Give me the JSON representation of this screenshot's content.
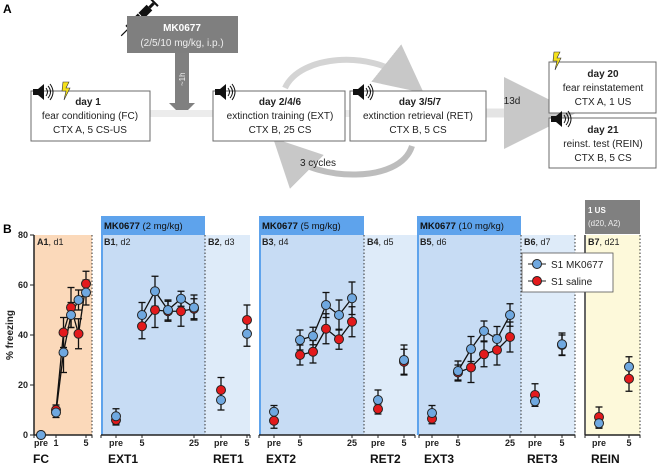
{
  "panel_labels": {
    "a": "A",
    "b": "B"
  },
  "diagram": {
    "drug_box": {
      "title": "MK0677",
      "dose": "(2/5/10 mg/kg, i.p.)"
    },
    "delay_label": "~1h",
    "cycles_label": "3 cycles",
    "gap_label": "13d",
    "boxes": [
      {
        "day": "day 1",
        "phase": "fear conditioning (FC)",
        "detail": "CTX A, 5 CS-US"
      },
      {
        "day": "day 2/4/6",
        "phase": "extinction training (EXT)",
        "detail": "CTX B, 25 CS"
      },
      {
        "day": "day 3/5/7",
        "phase": "extinction retrieval (RET)",
        "detail": "CTX B, 5 CS"
      },
      {
        "day": "day 20",
        "phase": "fear reinstatement",
        "detail": "CTX A, 1 US"
      },
      {
        "day": "day 21",
        "phase": "reinst. test (REIN)",
        "detail": "CTX B, 5 CS"
      }
    ],
    "icons": [
      "syringe-icon",
      "speaker-icon",
      "lightning-icon"
    ]
  },
  "chart_data": {
    "type": "line",
    "ylabel": "% freezing",
    "ylim": [
      0,
      80
    ],
    "yticks": [
      "0",
      "20",
      "40",
      "60",
      "80"
    ],
    "legend": {
      "placement": "top-right",
      "entries": [
        "S1 MK0677",
        "S1 saline"
      ]
    },
    "colors": {
      "mk0677": "#6fa8e0",
      "saline": "#e31a1c",
      "fc_bg": "#fbd9ba",
      "ext_bg": "#c7dcf4",
      "ret_bg": "#deebf9",
      "rein_bg": "#fdf9da",
      "header_blue": "#5ea3ec",
      "header_gray": "#808080"
    },
    "headers": [
      {
        "bold": "MK0677",
        "rest": " (2 mg/kg)"
      },
      {
        "bold": "MK0677",
        "rest": " (5 mg/kg)"
      },
      {
        "bold": "MK0677",
        "rest": " (10 mg/kg)"
      },
      {
        "bold": "1 US",
        "rest": "(d20, A2)"
      }
    ],
    "panels": [
      {
        "id": "A1",
        "day": ", d1",
        "group": "FC",
        "x": [
          "pre",
          1,
          2,
          3,
          4,
          5
        ],
        "ticks": [
          "pre",
          "1",
          "5"
        ],
        "mk0677": {
          "values": [
            0,
            9,
            33,
            48,
            54,
            57
          ],
          "err": [
            0,
            2,
            8,
            5,
            4,
            5
          ]
        },
        "saline": {
          "values": [
            0,
            10,
            41,
            51,
            40.5,
            60.5
          ],
          "err": [
            0,
            2,
            6,
            8,
            6,
            5
          ]
        }
      },
      {
        "id": "B1",
        "day": ", d2",
        "group": "EXT1",
        "x": [
          "pre",
          5,
          10,
          15,
          20,
          25
        ],
        "ticks": [
          "pre",
          "5",
          "25"
        ],
        "mk0677": {
          "values": [
            7.5,
            48,
            57.5,
            50,
            54.5,
            51
          ],
          "err": [
            3,
            5,
            6,
            4,
            3,
            5
          ]
        },
        "saline": {
          "values": [
            6,
            43.5,
            50,
            49.5,
            49.5,
            50.5
          ],
          "err": [
            2,
            5,
            7,
            4,
            6,
            4
          ]
        }
      },
      {
        "id": "B2",
        "day": ", d3",
        "group": "RET1",
        "x": [
          "pre",
          5
        ],
        "ticks": [
          "pre",
          "5"
        ],
        "mk0677": {
          "values": [
            14,
            40.5
          ],
          "err": [
            4,
            5
          ]
        },
        "saline": {
          "values": [
            18,
            46
          ],
          "err": [
            5,
            6
          ]
        }
      },
      {
        "id": "B3",
        "day": ", d4",
        "group": "EXT2",
        "x": [
          "pre",
          5,
          10,
          15,
          20,
          25
        ],
        "ticks": [
          "pre",
          "5",
          "25"
        ],
        "mk0677": {
          "values": [
            9.3,
            38,
            39.6,
            52,
            48,
            54.7
          ],
          "err": [
            2.5,
            4,
            3.5,
            5,
            6,
            6.5
          ]
        },
        "saline": {
          "values": [
            5.7,
            32,
            33.3,
            42.5,
            38.3,
            45.3
          ],
          "err": [
            3,
            4,
            4.5,
            6,
            4,
            6
          ]
        }
      },
      {
        "id": "B4",
        "day": ", d5",
        "group": "RET2",
        "x": [
          "pre",
          5
        ],
        "ticks": [
          "pre",
          "5"
        ],
        "mk0677": {
          "values": [
            14,
            30
          ],
          "err": [
            4,
            6
          ]
        },
        "saline": {
          "values": [
            10.4,
            29.3
          ],
          "err": [
            2,
            5
          ]
        }
      },
      {
        "id": "B5",
        "day": ", d6",
        "group": "EXT3",
        "x": [
          "pre",
          5,
          10,
          15,
          20,
          25
        ],
        "ticks": [
          "pre",
          "5",
          "25"
        ],
        "mk0677": {
          "values": [
            8.8,
            25.6,
            34.4,
            41.6,
            38.4,
            48
          ],
          "err": [
            3,
            4,
            5,
            4,
            5,
            4.5
          ]
        },
        "saline": {
          "values": [
            6.5,
            25,
            27,
            32.3,
            34,
            39.2
          ],
          "err": [
            2,
            3,
            6,
            5,
            6,
            6
          ]
        }
      },
      {
        "id": "B6",
        "day": ", d7",
        "group": "RET3",
        "x": [
          "pre",
          5
        ],
        "ticks": [
          "pre",
          "5"
        ],
        "mk0677": {
          "values": [
            13.5,
            36.3
          ],
          "err": [
            2,
            4.5
          ]
        },
        "saline": {
          "values": [
            16,
            36
          ],
          "err": [
            4.5,
            4
          ]
        }
      },
      {
        "id": "B7",
        "day": ", d21",
        "group": "REIN",
        "x": [
          "pre",
          5
        ],
        "ticks": [
          "pre",
          "5"
        ],
        "mk0677": {
          "values": [
            4.7,
            27.3
          ],
          "err": [
            2,
            4
          ]
        },
        "saline": {
          "values": [
            7.2,
            22.5
          ],
          "err": [
            4,
            5
          ]
        }
      }
    ]
  }
}
